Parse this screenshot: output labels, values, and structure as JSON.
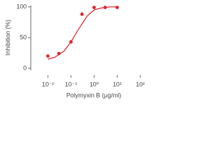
{
  "chart_data": {
    "type": "scatter",
    "xlabel": "Polymyxin B (μg/ml)",
    "ylabel": "Inhibition (%)",
    "xscale": "log",
    "xlim": [
      0.01,
      100
    ],
    "ylim": [
      0,
      100
    ],
    "xticks": [
      {
        "value": 0.01,
        "label": "10⁻²"
      },
      {
        "value": 0.1,
        "label": "10⁻¹"
      },
      {
        "value": 1,
        "label": "10⁰"
      },
      {
        "value": 10,
        "label": "10¹"
      },
      {
        "value": 100,
        "label": "10²"
      }
    ],
    "yticks": [
      0,
      50,
      100
    ],
    "series": [
      {
        "kind": "points",
        "color": "#e0262e",
        "x": [
          0.01,
          0.03,
          0.1,
          0.3,
          1,
          3,
          10
        ],
        "values": [
          20,
          24,
          43,
          88,
          99,
          99,
          99
        ]
      },
      {
        "kind": "line",
        "color": "#e0262e",
        "x": [
          0.01,
          0.02,
          0.05,
          0.1,
          0.2,
          0.5,
          1,
          2,
          5,
          10
        ],
        "values": [
          15,
          18,
          28,
          43,
          62,
          85,
          95,
          98,
          100,
          100
        ]
      }
    ]
  }
}
